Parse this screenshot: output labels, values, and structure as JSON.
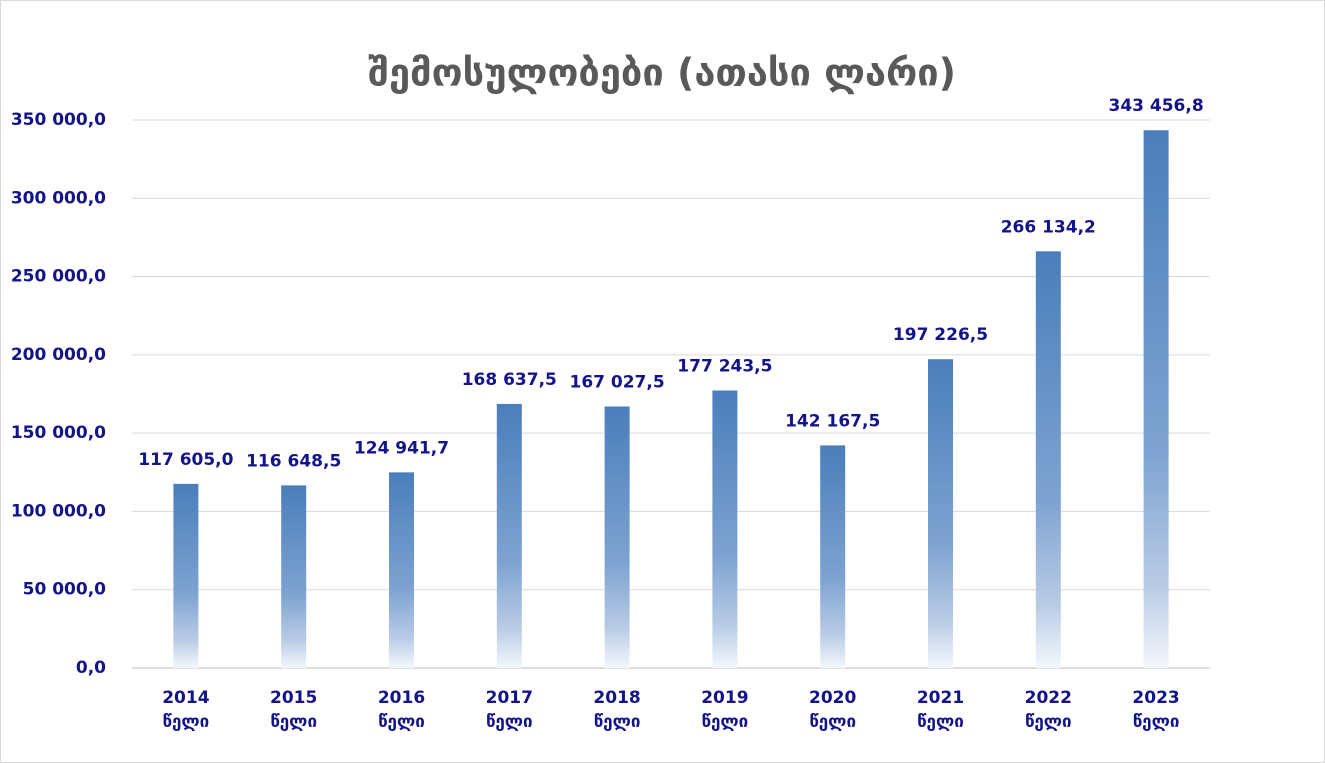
{
  "chart_data": {
    "type": "bar",
    "title": "შემოსულობები (ათასი ლარი)",
    "categories": [
      "2014 წელი",
      "2015 წელი",
      "2016 წელი",
      "2017 წელი",
      "2018 წელი",
      "2019 წელი",
      "2020 წელი",
      "2021 წელი",
      "2022 წელი",
      "2023 წელი"
    ],
    "values": [
      117605.0,
      116648.5,
      124941.7,
      168637.5,
      167027.5,
      177243.5,
      142167.5,
      197226.5,
      266134.2,
      343456.8
    ],
    "value_labels": [
      "117 605,0",
      "116 648,5",
      "124 941,7",
      "168 637,5",
      "167 027,5",
      "177 243,5",
      "142 167,5",
      "197 226,5",
      "266 134,2",
      "343 456,8"
    ],
    "color": "#4a7ebb",
    "ylim": [
      0,
      350000
    ],
    "yticks": [
      {
        "value": 0,
        "label": "0,0"
      },
      {
        "value": 50000,
        "label": "50 000,0"
      },
      {
        "value": 100000,
        "label": "100 000,0"
      },
      {
        "value": 150000,
        "label": "150 000,0"
      },
      {
        "value": 200000,
        "label": "200 000,0"
      },
      {
        "value": 250000,
        "label": "250 000,0"
      },
      {
        "value": 300000,
        "label": "300 000,0"
      },
      {
        "value": 350000,
        "label": "350 000,0"
      }
    ],
    "grid": true
  }
}
